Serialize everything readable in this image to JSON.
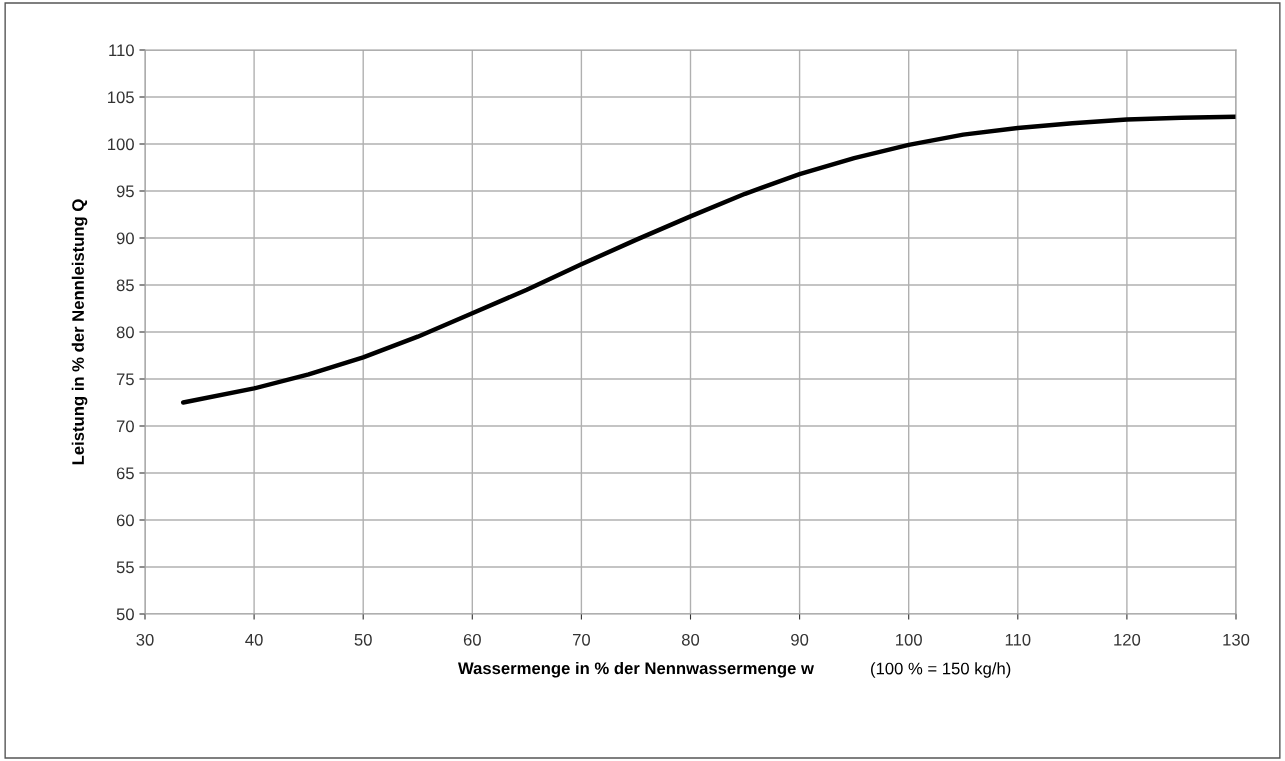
{
  "chart_data": {
    "type": "line",
    "xlabel": "Wassermenge in % der Nennwassermenge w",
    "ylabel": "Leistung in % der Nennleistung Q",
    "annotations": [
      "(100 % = 150 kg/h)"
    ],
    "series": [
      {
        "color": "#000000",
        "x": [
          33.5,
          40,
          45,
          50,
          55,
          60,
          65,
          70,
          75,
          80,
          85,
          90,
          95,
          100,
          105,
          110,
          115,
          120,
          125,
          130
        ],
        "values": [
          72.5,
          74,
          75.5,
          77.3,
          79.5,
          82,
          84.5,
          87.2,
          89.8,
          92.3,
          94.7,
          96.8,
          98.5,
          99.9,
          101,
          101.7,
          102.2,
          102.6,
          102.8,
          102.9
        ]
      }
    ],
    "xlim": [
      30,
      130
    ],
    "xticks": [
      30,
      40,
      50,
      60,
      70,
      80,
      90,
      100,
      110,
      120,
      130
    ],
    "ylim": [
      50,
      110
    ],
    "yticks": [
      50,
      55,
      60,
      65,
      70,
      75,
      80,
      85,
      90,
      95,
      100,
      105,
      110
    ],
    "grid": true,
    "legend": false,
    "marker": "none",
    "line_style": "solid"
  }
}
